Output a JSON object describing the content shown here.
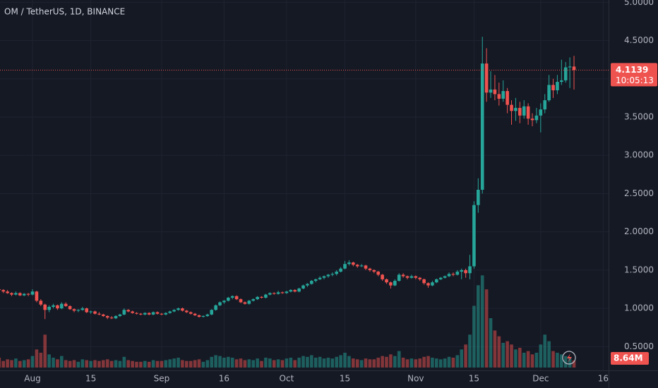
{
  "chart_data": {
    "type": "candlestick",
    "title": "OM / TetherUS, 1D, BINANCE",
    "up_color": "#26a69a",
    "down_color": "#ef5350",
    "candles": [
      [
        1.25,
        1.27,
        1.22,
        1.24,
        12
      ],
      [
        1.24,
        1.25,
        1.2,
        1.22,
        8
      ],
      [
        1.22,
        1.24,
        1.19,
        1.2,
        10
      ],
      [
        1.2,
        1.21,
        1.16,
        1.18,
        9
      ],
      [
        1.18,
        1.22,
        1.17,
        1.2,
        11
      ],
      [
        1.2,
        1.21,
        1.16,
        1.17,
        8
      ],
      [
        1.17,
        1.2,
        1.16,
        1.19,
        9
      ],
      [
        1.19,
        1.2,
        1.16,
        1.18,
        10
      ],
      [
        1.18,
        1.25,
        1.17,
        1.22,
        14
      ],
      [
        1.22,
        1.23,
        1.08,
        1.1,
        22
      ],
      [
        1.1,
        1.12,
        1.03,
        1.05,
        18
      ],
      [
        1.05,
        1.06,
        0.86,
        0.98,
        40
      ],
      [
        0.98,
        1.04,
        0.95,
        1.02,
        16
      ],
      [
        1.02,
        1.06,
        1.0,
        1.04,
        12
      ],
      [
        1.04,
        1.05,
        0.98,
        1.0,
        10
      ],
      [
        1.0,
        1.08,
        0.99,
        1.06,
        14
      ],
      [
        1.06,
        1.08,
        1.02,
        1.03,
        9
      ],
      [
        1.03,
        1.04,
        0.98,
        0.99,
        8
      ],
      [
        0.99,
        1.0,
        0.95,
        0.97,
        9
      ],
      [
        0.97,
        0.99,
        0.95,
        0.98,
        7
      ],
      [
        0.98,
        1.02,
        0.97,
        1.0,
        10
      ],
      [
        1.0,
        1.01,
        0.94,
        0.95,
        9
      ],
      [
        0.95,
        0.97,
        0.93,
        0.96,
        8
      ],
      [
        0.96,
        0.97,
        0.92,
        0.93,
        9
      ],
      [
        0.93,
        0.95,
        0.91,
        0.92,
        8
      ],
      [
        0.92,
        0.93,
        0.89,
        0.9,
        9
      ],
      [
        0.9,
        0.91,
        0.86,
        0.88,
        10
      ],
      [
        0.88,
        0.9,
        0.86,
        0.87,
        8
      ],
      [
        0.87,
        0.91,
        0.86,
        0.9,
        9
      ],
      [
        0.9,
        0.93,
        0.89,
        0.92,
        8
      ],
      [
        0.92,
        1.0,
        0.91,
        0.98,
        13
      ],
      [
        0.98,
        0.99,
        0.95,
        0.96,
        9
      ],
      [
        0.96,
        0.97,
        0.93,
        0.94,
        8
      ],
      [
        0.94,
        0.95,
        0.92,
        0.93,
        7
      ],
      [
        0.93,
        0.94,
        0.91,
        0.92,
        7
      ],
      [
        0.92,
        0.95,
        0.91,
        0.94,
        8
      ],
      [
        0.94,
        0.95,
        0.91,
        0.92,
        7
      ],
      [
        0.92,
        0.96,
        0.91,
        0.95,
        9
      ],
      [
        0.95,
        0.96,
        0.92,
        0.93,
        8
      ],
      [
        0.93,
        0.94,
        0.91,
        0.92,
        8
      ],
      [
        0.92,
        0.95,
        0.91,
        0.94,
        9
      ],
      [
        0.94,
        0.97,
        0.93,
        0.96,
        10
      ],
      [
        0.96,
        0.99,
        0.95,
        0.98,
        11
      ],
      [
        0.98,
        1.01,
        0.97,
        1.0,
        12
      ],
      [
        1.0,
        1.01,
        0.96,
        0.97,
        9
      ],
      [
        0.97,
        0.98,
        0.94,
        0.95,
        8
      ],
      [
        0.95,
        0.96,
        0.92,
        0.93,
        8
      ],
      [
        0.93,
        0.94,
        0.9,
        0.91,
        9
      ],
      [
        0.91,
        0.92,
        0.88,
        0.89,
        10
      ],
      [
        0.89,
        0.91,
        0.88,
        0.9,
        7
      ],
      [
        0.9,
        0.93,
        0.89,
        0.92,
        9
      ],
      [
        0.92,
        0.99,
        0.91,
        0.98,
        13
      ],
      [
        0.98,
        1.05,
        0.97,
        1.04,
        15
      ],
      [
        1.04,
        1.09,
        1.03,
        1.08,
        14
      ],
      [
        1.08,
        1.11,
        1.06,
        1.1,
        12
      ],
      [
        1.1,
        1.15,
        1.09,
        1.14,
        13
      ],
      [
        1.14,
        1.17,
        1.12,
        1.16,
        12
      ],
      [
        1.16,
        1.17,
        1.11,
        1.12,
        10
      ],
      [
        1.12,
        1.13,
        1.07,
        1.08,
        11
      ],
      [
        1.08,
        1.09,
        1.05,
        1.06,
        9
      ],
      [
        1.06,
        1.11,
        1.05,
        1.1,
        10
      ],
      [
        1.1,
        1.13,
        1.09,
        1.12,
        9
      ],
      [
        1.12,
        1.16,
        1.11,
        1.15,
        11
      ],
      [
        1.15,
        1.16,
        1.13,
        1.14,
        8
      ],
      [
        1.14,
        1.19,
        1.13,
        1.18,
        12
      ],
      [
        1.18,
        1.21,
        1.17,
        1.2,
        11
      ],
      [
        1.2,
        1.21,
        1.18,
        1.19,
        9
      ],
      [
        1.19,
        1.23,
        1.18,
        1.21,
        10
      ],
      [
        1.21,
        1.22,
        1.19,
        1.2,
        9
      ],
      [
        1.2,
        1.23,
        1.19,
        1.22,
        11
      ],
      [
        1.22,
        1.25,
        1.21,
        1.24,
        12
      ],
      [
        1.24,
        1.25,
        1.21,
        1.22,
        9
      ],
      [
        1.22,
        1.27,
        1.21,
        1.26,
        12
      ],
      [
        1.26,
        1.31,
        1.25,
        1.3,
        14
      ],
      [
        1.3,
        1.33,
        1.28,
        1.32,
        13
      ],
      [
        1.32,
        1.37,
        1.31,
        1.36,
        15
      ],
      [
        1.36,
        1.39,
        1.34,
        1.38,
        12
      ],
      [
        1.38,
        1.42,
        1.37,
        1.4,
        13
      ],
      [
        1.4,
        1.43,
        1.38,
        1.42,
        11
      ],
      [
        1.42,
        1.45,
        1.4,
        1.44,
        12
      ],
      [
        1.44,
        1.47,
        1.42,
        1.45,
        11
      ],
      [
        1.45,
        1.5,
        1.43,
        1.48,
        13
      ],
      [
        1.48,
        1.54,
        1.47,
        1.52,
        15
      ],
      [
        1.52,
        1.62,
        1.51,
        1.58,
        18
      ],
      [
        1.58,
        1.63,
        1.56,
        1.6,
        14
      ],
      [
        1.6,
        1.61,
        1.55,
        1.57,
        11
      ],
      [
        1.57,
        1.58,
        1.53,
        1.55,
        10
      ],
      [
        1.55,
        1.58,
        1.54,
        1.56,
        9
      ],
      [
        1.56,
        1.57,
        1.5,
        1.52,
        11
      ],
      [
        1.52,
        1.53,
        1.48,
        1.5,
        10
      ],
      [
        1.5,
        1.51,
        1.46,
        1.48,
        10
      ],
      [
        1.48,
        1.49,
        1.42,
        1.44,
        12
      ],
      [
        1.44,
        1.45,
        1.36,
        1.38,
        14
      ],
      [
        1.38,
        1.39,
        1.32,
        1.34,
        13
      ],
      [
        1.34,
        1.35,
        1.26,
        1.3,
        16
      ],
      [
        1.3,
        1.38,
        1.29,
        1.36,
        14
      ],
      [
        1.36,
        1.46,
        1.35,
        1.44,
        20
      ],
      [
        1.44,
        1.46,
        1.4,
        1.42,
        12
      ],
      [
        1.42,
        1.43,
        1.38,
        1.4,
        10
      ],
      [
        1.4,
        1.44,
        1.39,
        1.42,
        11
      ],
      [
        1.42,
        1.43,
        1.38,
        1.4,
        10
      ],
      [
        1.4,
        1.41,
        1.36,
        1.38,
        11
      ],
      [
        1.38,
        1.39,
        1.31,
        1.33,
        13
      ],
      [
        1.33,
        1.34,
        1.27,
        1.3,
        14
      ],
      [
        1.3,
        1.36,
        1.29,
        1.34,
        12
      ],
      [
        1.34,
        1.39,
        1.33,
        1.38,
        11
      ],
      [
        1.38,
        1.41,
        1.37,
        1.4,
        10
      ],
      [
        1.4,
        1.43,
        1.39,
        1.42,
        11
      ],
      [
        1.42,
        1.47,
        1.41,
        1.45,
        13
      ],
      [
        1.45,
        1.47,
        1.42,
        1.44,
        12
      ],
      [
        1.44,
        1.5,
        1.43,
        1.48,
        15
      ],
      [
        1.48,
        1.52,
        1.38,
        1.5,
        22
      ],
      [
        1.5,
        1.52,
        1.4,
        1.46,
        28
      ],
      [
        1.46,
        1.7,
        1.38,
        1.55,
        40
      ],
      [
        1.55,
        2.4,
        1.52,
        2.35,
        75
      ],
      [
        2.35,
        2.7,
        2.25,
        2.55,
        100
      ],
      [
        2.55,
        4.55,
        2.5,
        4.2,
        112
      ],
      [
        4.2,
        4.4,
        3.7,
        3.82,
        95
      ],
      [
        3.82,
        4.1,
        3.75,
        3.86,
        60
      ],
      [
        3.86,
        4.05,
        3.72,
        3.8,
        45
      ],
      [
        3.8,
        3.95,
        3.65,
        3.74,
        38
      ],
      [
        3.74,
        3.98,
        3.7,
        3.84,
        30
      ],
      [
        3.84,
        3.88,
        3.55,
        3.66,
        32
      ],
      [
        3.66,
        3.72,
        3.4,
        3.58,
        28
      ],
      [
        3.58,
        3.75,
        3.45,
        3.62,
        22
      ],
      [
        3.62,
        3.7,
        3.42,
        3.52,
        24
      ],
      [
        3.52,
        3.72,
        3.48,
        3.64,
        18
      ],
      [
        3.64,
        3.68,
        3.4,
        3.48,
        20
      ],
      [
        3.48,
        3.55,
        3.38,
        3.46,
        16
      ],
      [
        3.46,
        3.62,
        3.42,
        3.52,
        18
      ],
      [
        3.52,
        3.68,
        3.3,
        3.6,
        28
      ],
      [
        3.6,
        3.8,
        3.55,
        3.72,
        40
      ],
      [
        3.72,
        4.05,
        3.7,
        3.92,
        32
      ],
      [
        3.92,
        4.0,
        3.75,
        3.85,
        20
      ],
      [
        3.85,
        4.05,
        3.8,
        3.96,
        18
      ],
      [
        3.96,
        4.25,
        3.92,
        3.98,
        16
      ],
      [
        3.98,
        4.22,
        3.95,
        4.15,
        14
      ],
      [
        4.15,
        4.28,
        3.88,
        4.16,
        12
      ],
      [
        4.16,
        4.3,
        3.86,
        4.1139,
        8.64
      ]
    ],
    "ylim": [
      0.19,
      5.03
    ],
    "yticks": [
      {
        "value": 0.5,
        "label": "0.5000"
      },
      {
        "value": 1,
        "label": "1.0000"
      },
      {
        "value": 1.5,
        "label": "1.5000"
      },
      {
        "value": 2,
        "label": "2.0000"
      },
      {
        "value": 2.5,
        "label": "2.5000"
      },
      {
        "value": 3,
        "label": "3.0000"
      },
      {
        "value": 3.5,
        "label": "3.5000"
      },
      {
        "value": 4,
        "label": "4.0000"
      },
      {
        "value": 4.5,
        "label": "4.5000"
      },
      {
        "value": 5,
        "label": "5.0000"
      }
    ],
    "xlim": [
      0.2,
      146.3
    ],
    "xticks": [
      {
        "value": 8,
        "label": "Aug"
      },
      {
        "value": 22,
        "label": "15"
      },
      {
        "value": 39,
        "label": "Sep"
      },
      {
        "value": 54,
        "label": "16"
      },
      {
        "value": 69,
        "label": "Oct"
      },
      {
        "value": 83,
        "label": "15"
      },
      {
        "value": 100,
        "label": "Nov"
      },
      {
        "value": 114,
        "label": "15"
      },
      {
        "value": 130,
        "label": "Dec"
      },
      {
        "value": 145,
        "label": "16"
      }
    ],
    "volume_lim": [
      0,
      120
    ],
    "volume_label": "8.64M",
    "countdown": "10:05:13",
    "grid": true
  }
}
